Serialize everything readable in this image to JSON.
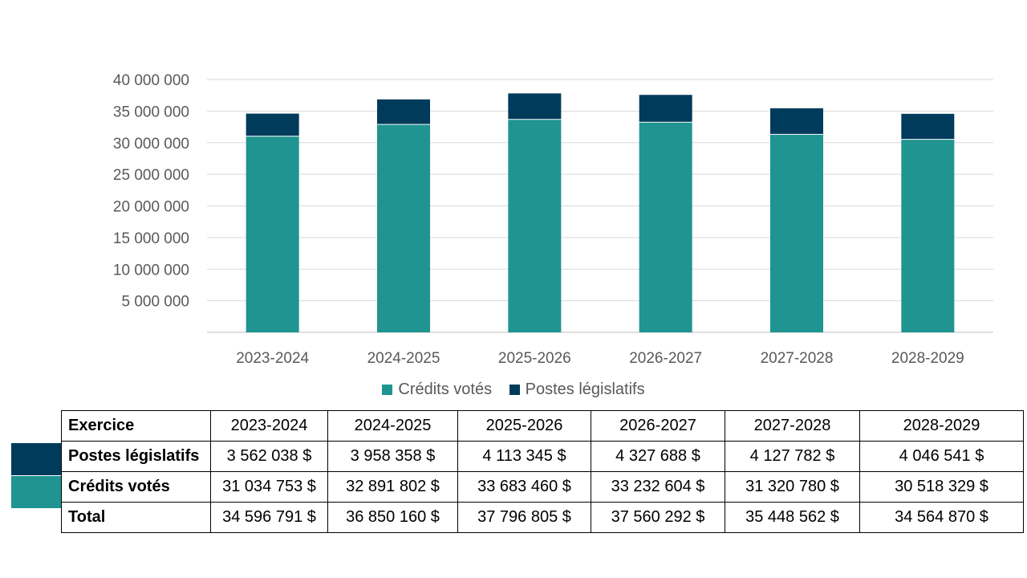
{
  "colors": {
    "credits": "#1f9490",
    "postes": "#003b5c",
    "grid": "#d9d9d9",
    "axis": "#bfbfbf",
    "text": "#595959"
  },
  "chart_data": {
    "type": "bar",
    "stacked": true,
    "categories": [
      "2023-2024",
      "2024-2025",
      "2025-2026",
      "2026-2027",
      "2027-2028",
      "2028-2029"
    ],
    "series": [
      {
        "name": "Crédits votés",
        "color": "#1f9490",
        "values": [
          31034753,
          32891802,
          33683460,
          33232604,
          31320780,
          30518329
        ]
      },
      {
        "name": "Postes législatifs",
        "color": "#003b5c",
        "values": [
          3562038,
          3958358,
          4113345,
          4327688,
          4127782,
          4046541
        ]
      }
    ],
    "ylim": [
      0,
      40000000
    ],
    "yticks": [
      "40 000 000",
      "35 000 000",
      "30 000 000",
      "25 000 000",
      "20 000 000",
      "15 000 000",
      "10 000 000",
      "5 000 000"
    ],
    "ytick_values": [
      40000000,
      35000000,
      30000000,
      25000000,
      20000000,
      15000000,
      10000000,
      5000000
    ],
    "grid": true,
    "legend_position": "bottom"
  },
  "legend": {
    "credits": "Crédits votés",
    "postes": "Postes législatifs"
  },
  "table": {
    "header": [
      "Exercice",
      "2023-2024",
      "2024-2025",
      "2025-2026",
      "2026-2027",
      "2027-2028",
      "2028-2029"
    ],
    "rows": [
      [
        "Postes législatifs",
        "3 562 038 $",
        "3 958 358 $",
        "4 113 345 $",
        "4 327 688 $",
        "4 127 782 $",
        "4 046 541 $"
      ],
      [
        "Crédits votés",
        "31 034 753 $",
        "32 891 802 $",
        "33 683 460 $",
        "33 232 604 $",
        "31 320 780 $",
        "30 518 329 $"
      ],
      [
        "Total",
        "34 596 791 $",
        "36 850 160 $",
        "37 796 805 $",
        "37 560 292 $",
        "35 448 562 $",
        "34 564 870 $"
      ]
    ]
  }
}
